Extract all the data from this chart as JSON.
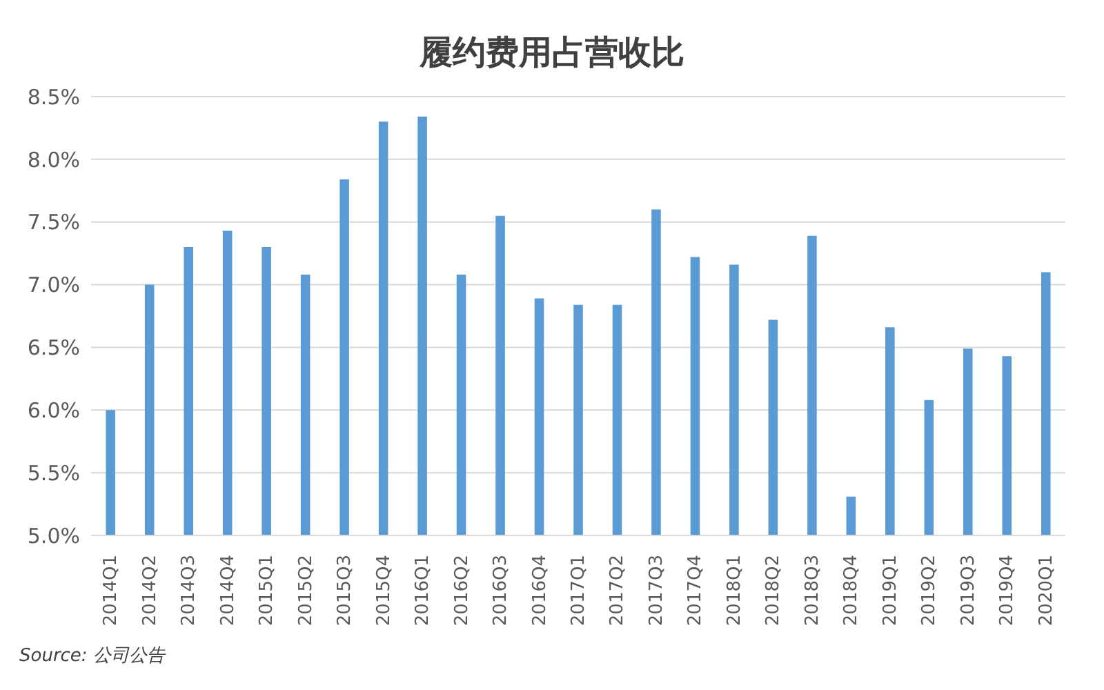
{
  "chart_data": {
    "type": "bar",
    "title": "履约费用占营收比",
    "categories": [
      "2014Q1",
      "2014Q2",
      "2014Q3",
      "2014Q4",
      "2015Q1",
      "2015Q2",
      "2015Q3",
      "2015Q4",
      "2016Q1",
      "2016Q2",
      "2016Q3",
      "2016Q4",
      "2017Q1",
      "2017Q2",
      "2017Q3",
      "2017Q4",
      "2018Q1",
      "2018Q2",
      "2018Q3",
      "2018Q4",
      "2019Q1",
      "2019Q2",
      "2019Q3",
      "2019Q4",
      "2020Q1"
    ],
    "values": [
      6.0,
      7.0,
      7.3,
      7.43,
      7.3,
      7.08,
      7.84,
      8.3,
      8.34,
      7.08,
      7.55,
      6.89,
      6.84,
      6.84,
      7.6,
      7.22,
      7.16,
      6.72,
      7.39,
      5.31,
      6.66,
      6.08,
      6.49,
      6.43,
      7.1
    ],
    "color": "#5b9bd5",
    "ylim": [
      5.0,
      8.5
    ],
    "yticks": [
      {
        "value": 5.0,
        "label": "5.0%"
      },
      {
        "value": 5.5,
        "label": "5.5%"
      },
      {
        "value": 6.0,
        "label": "6.0%"
      },
      {
        "value": 6.5,
        "label": "6.5%"
      },
      {
        "value": 7.0,
        "label": "7.0%"
      },
      {
        "value": 7.5,
        "label": "7.5%"
      },
      {
        "value": 8.0,
        "label": "8.0%"
      },
      {
        "value": 8.5,
        "label": "8.5%"
      }
    ],
    "grid": "y",
    "annotations": [
      "Source:  公司公告"
    ]
  }
}
